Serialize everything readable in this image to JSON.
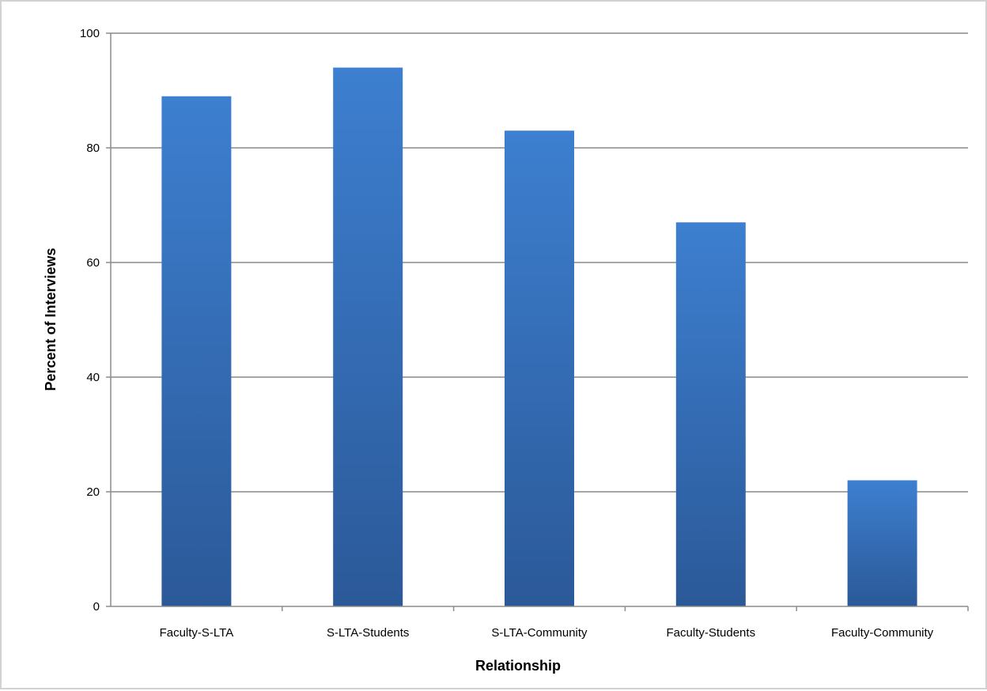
{
  "chart_data": {
    "type": "bar",
    "title": "",
    "xlabel": "Relationship",
    "ylabel": "Percent of Interviews",
    "categories": [
      "Faculty-S-LTA",
      "S-LTA-Students",
      "S-LTA-Community",
      "Faculty-Students",
      "Faculty-Community"
    ],
    "values": [
      89,
      94,
      83,
      67,
      22
    ],
    "ylim": [
      0,
      100
    ],
    "yticks": [
      "0",
      "20",
      "40",
      "60",
      "80",
      "100"
    ],
    "grid": true,
    "legend": "none",
    "colors": {
      "bar_top": "#3d7fd0",
      "bar_bottom": "#2b5998",
      "grid": "#a6a6a6",
      "axis": "#8c8c8c"
    }
  }
}
